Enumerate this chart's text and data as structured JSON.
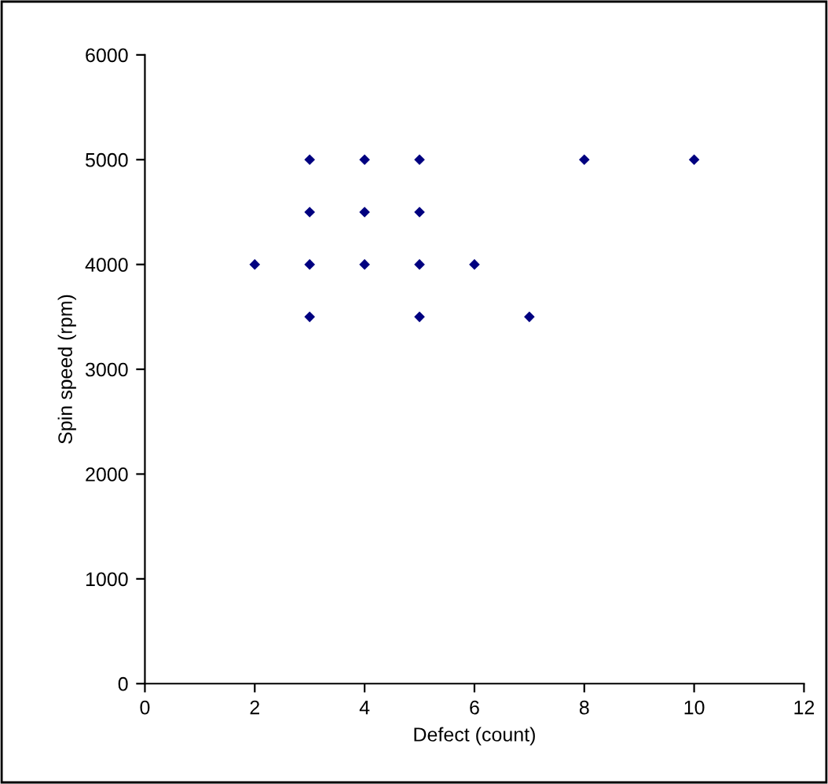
{
  "chart_data": {
    "type": "scatter",
    "xlabel": "Defect (count)",
    "ylabel": "Spin speed (rpm)",
    "x": [
      2,
      3,
      3,
      3,
      3,
      4,
      4,
      4,
      5,
      5,
      5,
      5,
      6,
      7,
      8,
      10
    ],
    "values": [
      4000,
      5000,
      4500,
      4000,
      3500,
      5000,
      4500,
      4000,
      5000,
      4500,
      4000,
      3500,
      4000,
      3500,
      5000,
      5000
    ],
    "color": "#000080",
    "marker": "diamond",
    "xlim": [
      0,
      12
    ],
    "xticks": [
      0,
      2,
      4,
      6,
      8,
      10,
      12
    ],
    "ylim": [
      0,
      6000
    ],
    "yticks": [
      0,
      1000,
      2000,
      3000,
      4000,
      5000,
      6000
    ],
    "grid": false,
    "legend": false
  }
}
